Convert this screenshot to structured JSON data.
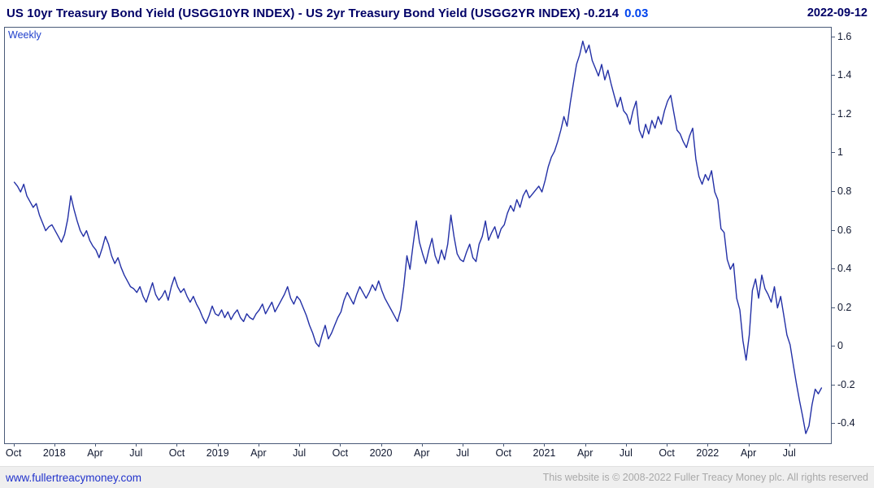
{
  "header": {
    "title": "US 10yr Treasury Bond Yield (USGG10YR INDEX) - US 2yr Treasury Bond Yield (USGG2YR INDEX) -0.214",
    "change_value": "0.03",
    "date": "2022-09-12"
  },
  "chart": {
    "frequency_label": "Weekly"
  },
  "footer": {
    "site_link": "www.fullertreacymoney.com",
    "copyright": "This website is © 2008-2022 Fuller Treacy Money plc. All rights reserved"
  },
  "colors": {
    "line": "#2330a6",
    "title_navy": "#000066",
    "change_blue": "#0044ee",
    "plot_border": "#4a5a78",
    "link_blue": "#2233cc",
    "footer_gray": "#a9a9a9"
  },
  "chart_data": {
    "type": "line",
    "title": "US 10yr Treasury Bond Yield (USGG10YR INDEX) - US 2yr Treasury Bond Yield (USGG2YR INDEX)",
    "series_name": "10yr minus 2yr Treasury yield spread",
    "frequency": "Weekly",
    "date_shown": "2022-09-12",
    "last_value": -0.214,
    "last_change": 0.03,
    "ylim": [
      -0.5,
      1.65
    ],
    "y_ticks": [
      {
        "label": "1.6",
        "value": 1.6
      },
      {
        "label": "1.4",
        "value": 1.4
      },
      {
        "label": "1.2",
        "value": 1.2
      },
      {
        "label": "1",
        "value": 1.0
      },
      {
        "label": "0.8",
        "value": 0.8
      },
      {
        "label": "0.6",
        "value": 0.6
      },
      {
        "label": "0.4",
        "value": 0.4
      },
      {
        "label": "0.2",
        "value": 0.2
      },
      {
        "label": "0",
        "value": 0.0
      },
      {
        "label": "-0.2",
        "value": -0.2
      },
      {
        "label": "-0.4",
        "value": -0.4
      }
    ],
    "x_tick_labels": [
      "Oct",
      "2018",
      "Apr",
      "Jul",
      "Oct",
      "2019",
      "Apr",
      "Jul",
      "Oct",
      "2020",
      "Apr",
      "Jul",
      "Oct",
      "2021",
      "Apr",
      "Jul",
      "Oct",
      "2022",
      "Apr",
      "Jul"
    ],
    "x_tick_step_weeks": 13,
    "x_left_margin_weeks": 3,
    "x_span_weeks": 263,
    "values": [
      0.85,
      0.83,
      0.8,
      0.84,
      0.78,
      0.75,
      0.72,
      0.74,
      0.68,
      0.64,
      0.6,
      0.62,
      0.63,
      0.6,
      0.57,
      0.54,
      0.58,
      0.66,
      0.78,
      0.71,
      0.65,
      0.6,
      0.57,
      0.6,
      0.55,
      0.52,
      0.5,
      0.46,
      0.51,
      0.57,
      0.53,
      0.47,
      0.43,
      0.46,
      0.41,
      0.37,
      0.34,
      0.31,
      0.3,
      0.28,
      0.31,
      0.26,
      0.23,
      0.28,
      0.33,
      0.27,
      0.24,
      0.26,
      0.29,
      0.24,
      0.31,
      0.36,
      0.31,
      0.28,
      0.3,
      0.26,
      0.23,
      0.26,
      0.22,
      0.19,
      0.15,
      0.12,
      0.16,
      0.21,
      0.17,
      0.16,
      0.19,
      0.15,
      0.18,
      0.14,
      0.17,
      0.19,
      0.15,
      0.13,
      0.17,
      0.15,
      0.14,
      0.17,
      0.19,
      0.22,
      0.17,
      0.2,
      0.23,
      0.18,
      0.21,
      0.24,
      0.27,
      0.31,
      0.25,
      0.22,
      0.26,
      0.24,
      0.2,
      0.16,
      0.11,
      0.07,
      0.02,
      0.0,
      0.06,
      0.11,
      0.04,
      0.07,
      0.11,
      0.15,
      0.18,
      0.24,
      0.28,
      0.25,
      0.22,
      0.27,
      0.31,
      0.28,
      0.25,
      0.28,
      0.32,
      0.29,
      0.34,
      0.29,
      0.25,
      0.22,
      0.19,
      0.16,
      0.13,
      0.19,
      0.31,
      0.47,
      0.4,
      0.53,
      0.65,
      0.54,
      0.48,
      0.43,
      0.5,
      0.56,
      0.47,
      0.43,
      0.5,
      0.45,
      0.53,
      0.68,
      0.57,
      0.48,
      0.45,
      0.44,
      0.49,
      0.53,
      0.46,
      0.44,
      0.53,
      0.57,
      0.65,
      0.55,
      0.59,
      0.62,
      0.56,
      0.61,
      0.63,
      0.69,
      0.73,
      0.7,
      0.76,
      0.72,
      0.78,
      0.81,
      0.77,
      0.79,
      0.81,
      0.83,
      0.8,
      0.86,
      0.93,
      0.98,
      1.01,
      1.06,
      1.12,
      1.19,
      1.14,
      1.26,
      1.36,
      1.46,
      1.51,
      1.58,
      1.52,
      1.56,
      1.48,
      1.44,
      1.4,
      1.46,
      1.38,
      1.43,
      1.36,
      1.3,
      1.24,
      1.29,
      1.22,
      1.2,
      1.15,
      1.22,
      1.27,
      1.12,
      1.08,
      1.15,
      1.1,
      1.17,
      1.13,
      1.19,
      1.15,
      1.22,
      1.27,
      1.3,
      1.21,
      1.12,
      1.1,
      1.06,
      1.03,
      1.09,
      1.13,
      0.97,
      0.88,
      0.84,
      0.89,
      0.86,
      0.91,
      0.8,
      0.76,
      0.61,
      0.59,
      0.45,
      0.4,
      0.43,
      0.25,
      0.19,
      0.03,
      -0.07,
      0.06,
      0.29,
      0.35,
      0.25,
      0.37,
      0.3,
      0.27,
      0.23,
      0.31,
      0.2,
      0.26,
      0.16,
      0.06,
      0.01,
      -0.09,
      -0.19,
      -0.28,
      -0.36,
      -0.45,
      -0.41,
      -0.3,
      -0.22,
      -0.244,
      -0.214
    ]
  }
}
